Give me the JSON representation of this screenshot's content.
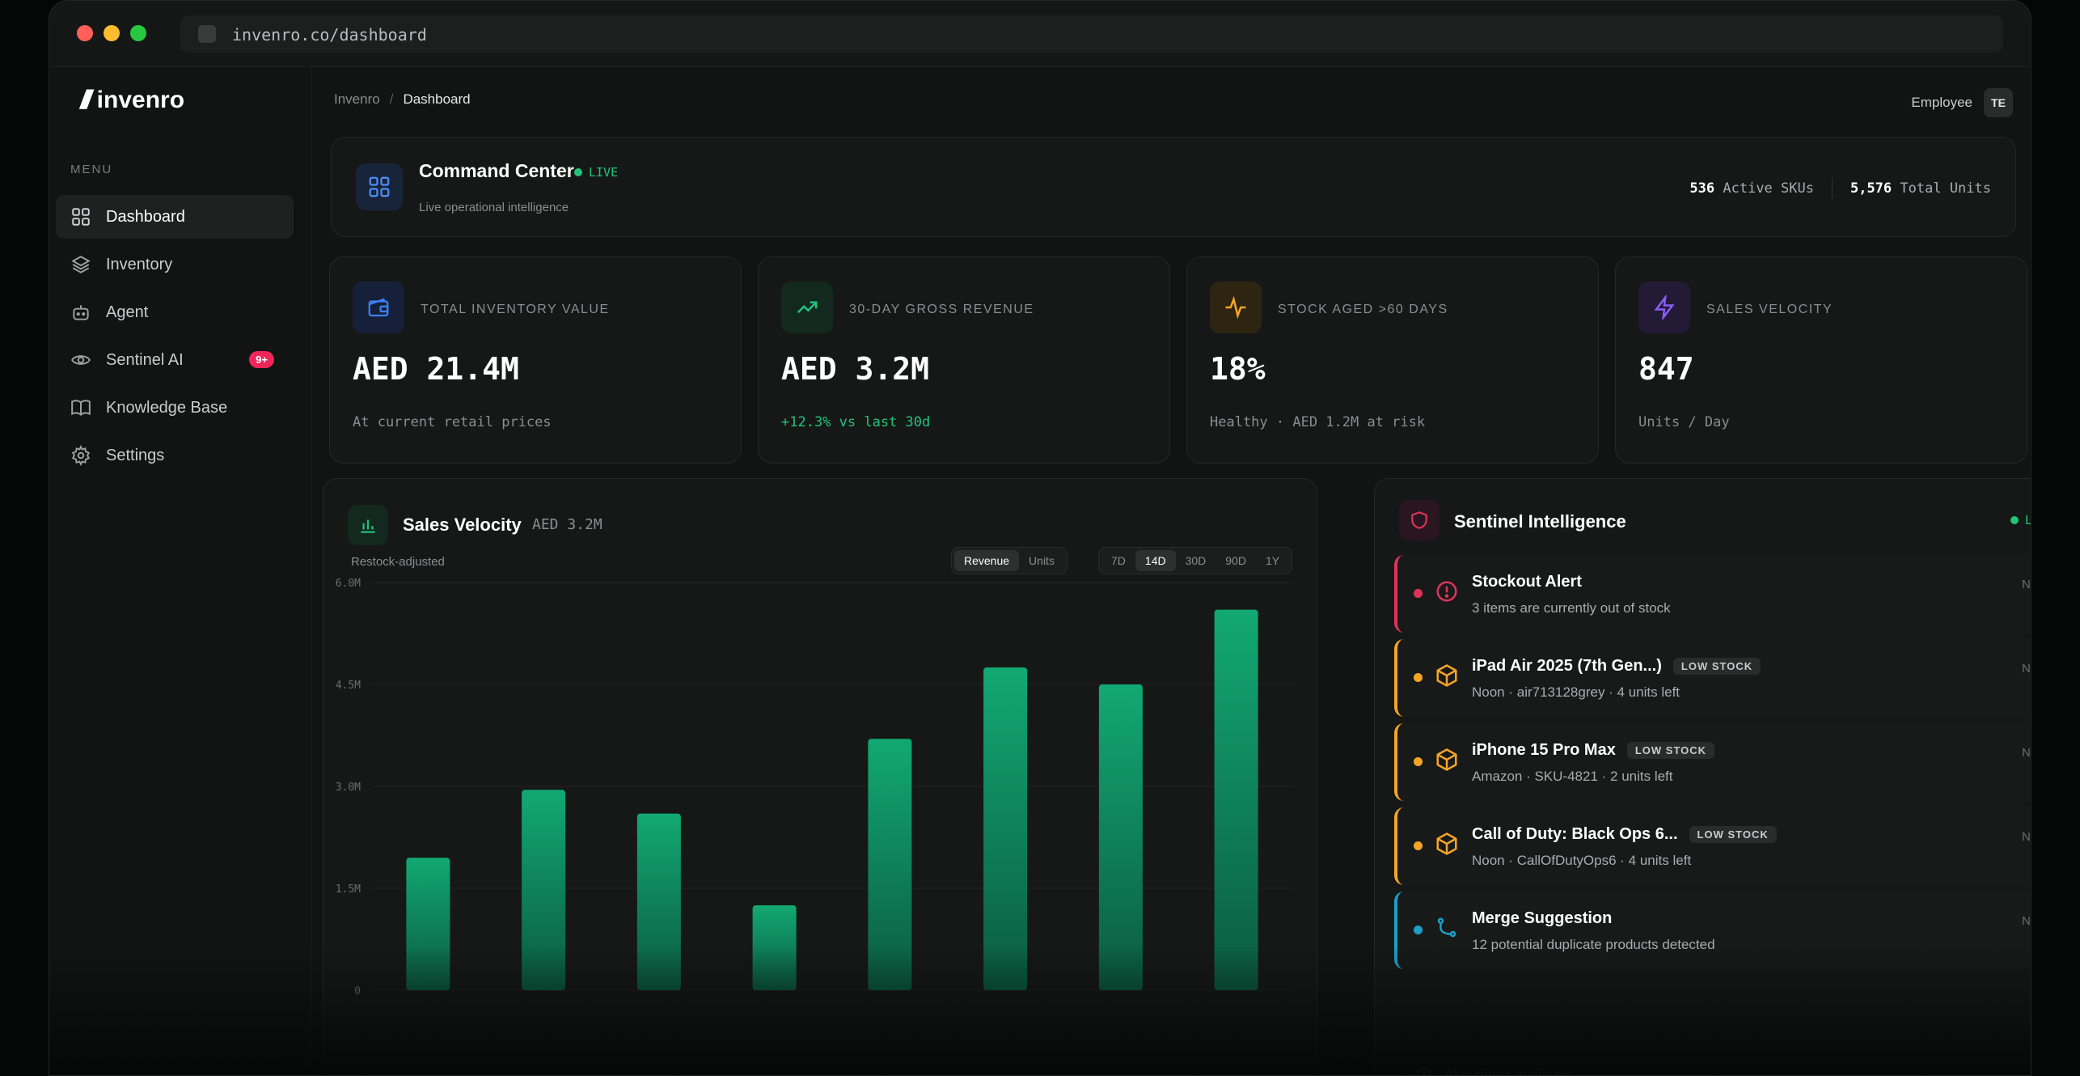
{
  "browser": {
    "url": "invenro.co/dashboard"
  },
  "sidebar": {
    "logo_mark": "///",
    "logo_text": "invenro",
    "menu_label": "MENU",
    "items": [
      {
        "label": "Dashboard",
        "icon": "grid-icon"
      },
      {
        "label": "Inventory",
        "icon": "layers-icon"
      },
      {
        "label": "Agent",
        "icon": "bot-icon"
      },
      {
        "label": "Sentinel AI",
        "icon": "eye-icon",
        "badge": "9+"
      },
      {
        "label": "Knowledge Base",
        "icon": "book-icon"
      },
      {
        "label": "Settings",
        "icon": "gear-icon"
      }
    ]
  },
  "header": {
    "breadcrumb_root": "Invenro",
    "breadcrumb_sep": "/",
    "breadcrumb_current": "Dashboard",
    "role": "Employee",
    "avatar": "TE"
  },
  "command_center": {
    "title": "Command Center",
    "live": "LIVE",
    "subtitle": "Live operational intelligence",
    "skus_value": "536",
    "skus_label": "Active SKUs",
    "units_value": "5,576",
    "units_label": "Total Units"
  },
  "metrics": [
    {
      "label": "TOTAL INVENTORY VALUE",
      "value": "AED 21.4M",
      "sub": "At current retail prices",
      "icon": "wallet-icon",
      "color": "#3b82f6"
    },
    {
      "label": "30-DAY GROSS REVENUE",
      "value": "AED 3.2M",
      "sub": "+12.3% vs last 30d",
      "icon": "trend-up-icon",
      "color": "#22c47a"
    },
    {
      "label": "STOCK AGED >60 DAYS",
      "value": "18%",
      "sub": "Healthy · AED 1.2M at risk",
      "icon": "pulse-icon",
      "color": "#f5a524"
    },
    {
      "label": "SALES VELOCITY",
      "value": "847",
      "sub": "Units / Day",
      "icon": "bolt-icon",
      "color": "#8b5cf6"
    }
  ],
  "sales": {
    "title": "Sales Velocity",
    "value": "AED 3.2M",
    "subtitle": "Restock-adjusted",
    "modes": [
      "Revenue",
      "Units"
    ],
    "active_mode": "Revenue",
    "ranges": [
      "7D",
      "14D",
      "30D",
      "90D",
      "1Y"
    ],
    "active_range": "14D"
  },
  "chart_data": {
    "type": "bar",
    "title": "Sales Velocity",
    "ylim": [
      0,
      6.0
    ],
    "yticks": [
      "6.0M",
      "4.5M",
      "3.0M",
      "1.5M",
      "0"
    ],
    "ytick_values": [
      6.0,
      4.5,
      3.0,
      1.5,
      0
    ],
    "categories": [
      "",
      "",
      "",
      "",
      "",
      "",
      "",
      ""
    ],
    "values": [
      1.95,
      2.95,
      2.6,
      1.25,
      3.7,
      4.75,
      4.5,
      5.6
    ],
    "bar_color": "#12a874",
    "grid": true
  },
  "sentinel": {
    "title": "Sentinel Intelligence",
    "live": "LIVE",
    "alerts": [
      {
        "title": "Stockout Alert",
        "tag": "",
        "sub": "3 items are currently out of stock",
        "time": "Now",
        "color": "#e0335a",
        "icon": "alert-circle-icon"
      },
      {
        "title": "iPad Air 2025 (7th Gen...)",
        "tag": "LOW STOCK",
        "sub": "Noon · air713128grey · 4 units left",
        "time": "Now",
        "color": "#f5a524",
        "icon": "package-icon"
      },
      {
        "title": "iPhone 15 Pro Max",
        "tag": "LOW STOCK",
        "sub": "Amazon · SKU-4821 · 2 units left",
        "time": "Now",
        "color": "#f5a524",
        "icon": "package-icon"
      },
      {
        "title": "Call of Duty: Black Ops 6...",
        "tag": "LOW STOCK",
        "sub": "Noon · CallOfDutyOps6 · 4 units left",
        "time": "Now",
        "color": "#f5a524",
        "icon": "package-icon"
      },
      {
        "title": "Merge Suggestion",
        "tag": "",
        "sub": "12 potential duplicate products detected",
        "time": "Now",
        "color": "#1aa0c8",
        "icon": "merge-icon"
      }
    ],
    "footer": "AI insights available"
  }
}
